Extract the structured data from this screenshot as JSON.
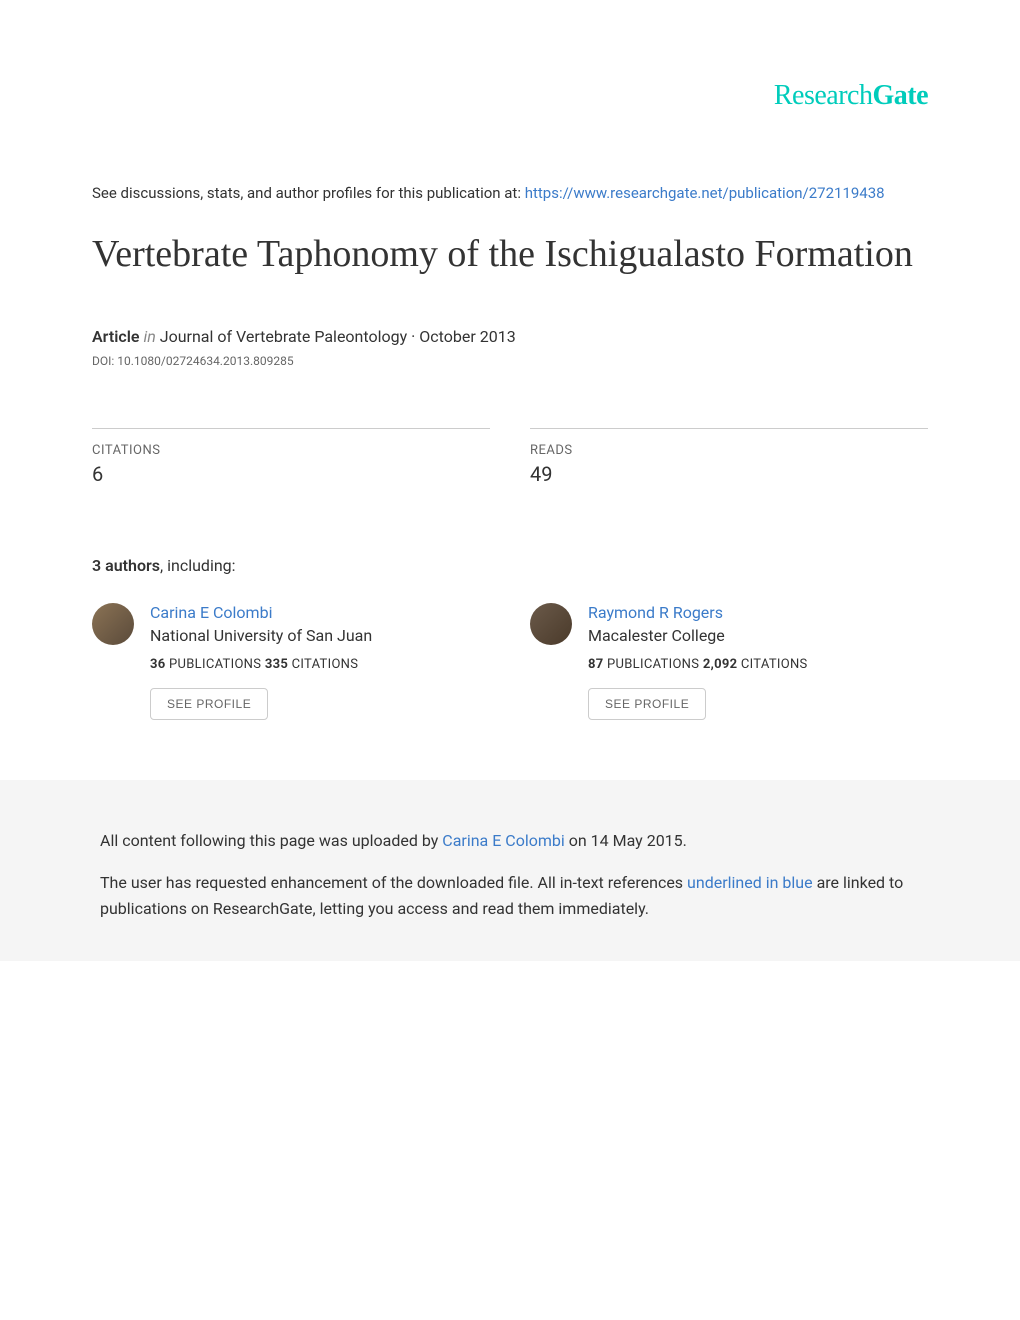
{
  "logo": {
    "part1": "Research",
    "part2": "Gate"
  },
  "header": {
    "discussion_prefix": "See discussions, stats, and author profiles for this publication at: ",
    "publication_url": "https://www.researchgate.net/publication/272119438"
  },
  "title": "Vertebrate Taphonomy of the Ischigualasto Formation",
  "meta": {
    "type": "Article",
    "in": "in",
    "journal": "  Journal of Vertebrate Paleontology · October 2013",
    "doi": "DOI: 10.1080/02724634.2013.809285"
  },
  "stats": {
    "citations_label": "CITATIONS",
    "citations_value": "6",
    "reads_label": "READS",
    "reads_value": "49"
  },
  "authors": {
    "count": "3 authors",
    "suffix": ", including:",
    "list": [
      {
        "name": "Carina E Colombi",
        "affiliation": "National University of San Juan",
        "publications": "36",
        "publications_label": " PUBLICATIONS   ",
        "citations": "335",
        "citations_label": " CITATIONS   ",
        "button": "SEE PROFILE"
      },
      {
        "name": "Raymond R Rogers",
        "affiliation": "Macalester College",
        "publications": "87",
        "publications_label": " PUBLICATIONS   ",
        "citations": "2,092",
        "citations_label": " CITATIONS   ",
        "button": "SEE PROFILE"
      }
    ]
  },
  "footer": {
    "line1_prefix": "All content following this page was uploaded by ",
    "line1_author": "Carina E Colombi",
    "line1_suffix": " on 14 May 2015.",
    "line2_prefix": "The user has requested enhancement of the downloaded file. All in-text references ",
    "line2_link": "underlined in blue",
    "line2_suffix": " are linked to publications on ResearchGate, letting you access and read them immediately."
  },
  "colors": {
    "primary_teal": "#00ccbb",
    "link_blue": "#3b7bc9",
    "text_dark": "#333333",
    "text_muted": "#666666",
    "border_gray": "#cccccc",
    "footer_bg": "#f5f5f5"
  }
}
